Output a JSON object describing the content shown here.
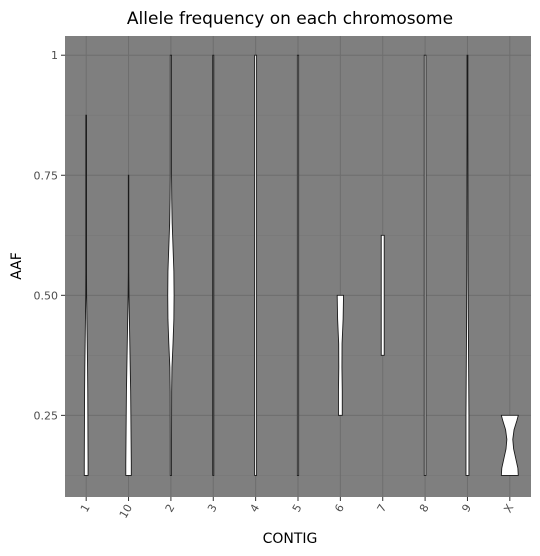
{
  "chart_data": {
    "type": "violin",
    "title": "Allele frequency on each chromosome",
    "xlabel": "CONTIG",
    "ylabel": "AAF",
    "ylim": [
      0.08,
      1.04
    ],
    "yticks": [
      0.25,
      0.5,
      0.75,
      1.0
    ],
    "ytick_labels": [
      "0.25",
      "0.50",
      "0.75",
      "1"
    ],
    "categories": [
      "1",
      "10",
      "2",
      "3",
      "4",
      "5",
      "6",
      "7",
      "8",
      "9",
      "X"
    ],
    "grid": true,
    "legend": "none",
    "panel_background": "#7f7f7f",
    "violin_fill": "#ffffff",
    "violins": [
      {
        "category": "1",
        "y": [
          0.125,
          0.15,
          0.2,
          0.25,
          0.3,
          0.35,
          0.4,
          0.45,
          0.5,
          0.55,
          0.6,
          0.7,
          0.8,
          0.875
        ],
        "halfwidth": [
          0.09,
          0.09,
          0.085,
          0.08,
          0.075,
          0.065,
          0.05,
          0.035,
          0.02,
          0.015,
          0.015,
          0.015,
          0.015,
          0.015
        ]
      },
      {
        "category": "10",
        "y": [
          0.125,
          0.15,
          0.2,
          0.25,
          0.3,
          0.35,
          0.4,
          0.45,
          0.5,
          0.55,
          0.6,
          0.7,
          0.75
        ],
        "halfwidth": [
          0.13,
          0.13,
          0.12,
          0.11,
          0.1,
          0.08,
          0.06,
          0.04,
          0.02,
          0.01,
          0.01,
          0.01,
          0.01
        ]
      },
      {
        "category": "2",
        "y": [
          0.125,
          0.2,
          0.3,
          0.35,
          0.4,
          0.45,
          0.5,
          0.55,
          0.6,
          0.65,
          0.7,
          0.75,
          0.8,
          0.9,
          1.0
        ],
        "halfwidth": [
          0.03,
          0.03,
          0.035,
          0.05,
          0.1,
          0.14,
          0.15,
          0.14,
          0.1,
          0.06,
          0.04,
          0.03,
          0.03,
          0.03,
          0.03
        ]
      },
      {
        "category": "3",
        "y": [
          0.125,
          1.0
        ],
        "halfwidth": [
          0.025,
          0.025
        ]
      },
      {
        "category": "4",
        "y": [
          0.125,
          1.0
        ],
        "halfwidth": [
          0.045,
          0.045
        ]
      },
      {
        "category": "5",
        "y": [
          0.125,
          1.0
        ],
        "halfwidth": [
          0.03,
          0.03
        ]
      },
      {
        "category": "6",
        "y": [
          0.25,
          0.3,
          0.35,
          0.4,
          0.45,
          0.5
        ],
        "halfwidth": [
          0.09,
          0.09,
          0.075,
          0.08,
          0.13,
          0.15
        ]
      },
      {
        "category": "7",
        "y": [
          0.375,
          0.625
        ],
        "halfwidth": [
          0.07,
          0.07
        ]
      },
      {
        "category": "8",
        "y": [
          0.125,
          1.0
        ],
        "halfwidth": [
          0.04,
          0.04
        ]
      },
      {
        "category": "9",
        "y": [
          0.125,
          0.25,
          0.35,
          0.45,
          0.55,
          0.7,
          0.85,
          1.0
        ],
        "halfwidth": [
          0.07,
          0.07,
          0.055,
          0.04,
          0.03,
          0.025,
          0.02,
          0.02
        ]
      },
      {
        "category": "X",
        "y": [
          0.125,
          0.14,
          0.16,
          0.18,
          0.2,
          0.22,
          0.24,
          0.25
        ],
        "halfwidth": [
          0.4,
          0.38,
          0.28,
          0.18,
          0.14,
          0.2,
          0.34,
          0.4
        ]
      }
    ]
  }
}
